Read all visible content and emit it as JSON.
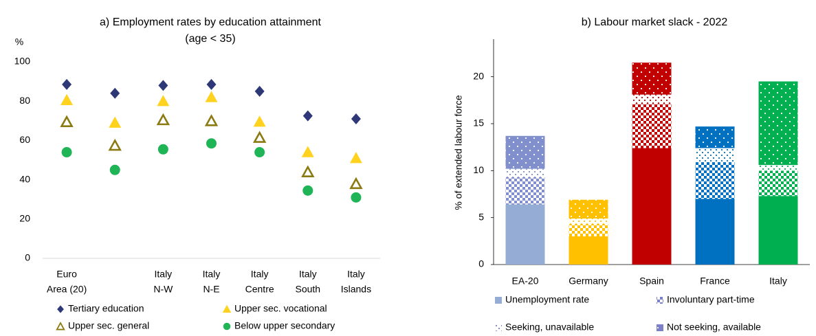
{
  "chart_data": [
    {
      "type": "dot",
      "title": "a) Employment rates by education attainment",
      "subtitle": "(age < 35)",
      "ylabel": "%",
      "categories": [
        [
          "Euro",
          "Area (20)"
        ],
        null,
        [
          "Italy",
          "N-W"
        ],
        [
          "Italy",
          "N-E"
        ],
        [
          "Italy",
          "Centre"
        ],
        [
          "Italy",
          "South"
        ],
        [
          "Italy",
          "Islands"
        ]
      ],
      "series": [
        {
          "name": "Tertiary education",
          "color": "#2e3877",
          "marker": "diamond",
          "values": [
            88.5,
            84,
            88,
            88.5,
            85,
            72.5,
            71
          ]
        },
        {
          "name": "Upper sec. vocational",
          "color": "#ffd21f",
          "marker": "triangle",
          "values": [
            80.5,
            69,
            80,
            82,
            69.5,
            54,
            51
          ]
        },
        {
          "name": "Upper sec. general",
          "color": "#8b7a12",
          "marker": "hollow-triangle",
          "values": [
            69.5,
            57.5,
            70.5,
            70,
            61.5,
            44,
            38
          ]
        },
        {
          "name": "Below upper secondary",
          "color": "#1fb556",
          "marker": "circle",
          "values": [
            54,
            45,
            55.5,
            58.5,
            54,
            34.5,
            31
          ]
        }
      ],
      "ylim": [
        0,
        100
      ],
      "yticks": [
        0,
        20,
        40,
        60,
        80,
        100
      ],
      "grid": false
    },
    {
      "type": "stacked-bar",
      "title": "b) Labour market slack - 2022",
      "ylabel": "% of extended labour force",
      "categories": [
        "EA-20",
        "Germany",
        "Spain",
        "France",
        "Italy"
      ],
      "bar_colors": [
        "#8190cc",
        "#ffc000",
        "#c00000",
        "#0070c0",
        "#00b050"
      ],
      "series": [
        {
          "name": "Unemployment rate",
          "color": "#95acd4",
          "pattern": "solid",
          "values": [
            6.4,
            3.0,
            12.4,
            7.0,
            7.3
          ]
        },
        {
          "name": "Involuntary part-time",
          "color": "#7b80c8",
          "pattern": "checker",
          "values": [
            2.9,
            1.3,
            4.7,
            3.9,
            2.7
          ]
        },
        {
          "name": "Seeking, unavailable",
          "color": "#7b80c8",
          "pattern": "sparse-dots",
          "values": [
            0.9,
            0.6,
            1.0,
            1.5,
            0.6
          ]
        },
        {
          "name": "Not seeking, available",
          "color": "#7b80c8",
          "pattern": "dots",
          "values": [
            3.5,
            2.0,
            3.4,
            2.3,
            8.9
          ]
        }
      ],
      "ylim": [
        0,
        24
      ],
      "yticks": [
        0,
        5,
        10,
        15,
        20
      ],
      "grid": false
    }
  ]
}
